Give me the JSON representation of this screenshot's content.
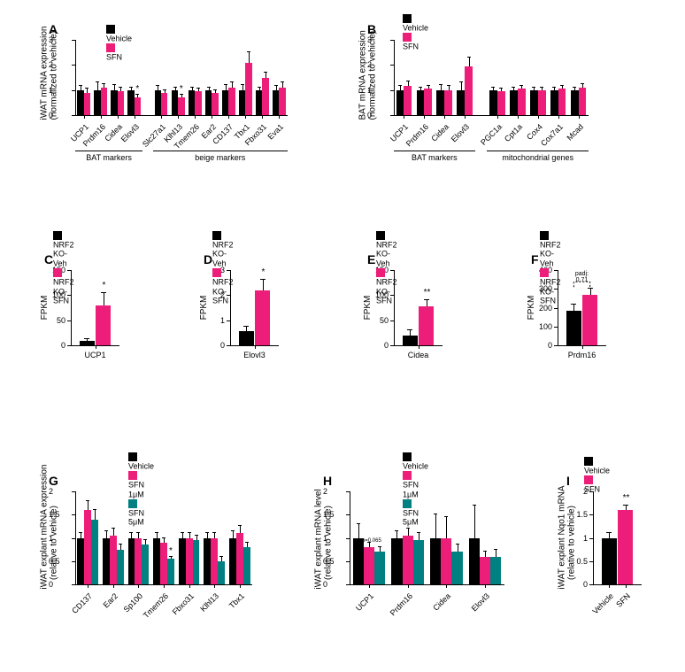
{
  "colors": {
    "vehicle": "#000000",
    "sfn": "#ed1e79",
    "sfn5": "#008080",
    "axis": "#000000",
    "bg": "#ffffff"
  },
  "panelA": {
    "label": "A",
    "y_label": "iWAT mRNA expression\n(normalized to vehicle)",
    "ylim": [
      0,
      3
    ],
    "yticks": [
      0,
      1,
      2,
      3
    ],
    "legend": [
      {
        "label": "Vehicle",
        "color": "#000000"
      },
      {
        "label": "SFN",
        "color": "#ed1e79"
      }
    ],
    "cats": [
      "UCP1",
      "Prdm16",
      "Cidea",
      "Elovl3",
      "Slc27a1",
      "Klhl13",
      "Tmem26",
      "Ear2",
      "CD137",
      "Tbx1",
      "Fbxo31",
      "Eva1"
    ],
    "groups": [
      {
        "label": "BAT markers",
        "start": 0,
        "end": 3
      },
      {
        "label": "beige markers",
        "start": 4,
        "end": 11
      }
    ],
    "vehicle": [
      1.0,
      1.0,
      1.0,
      1.0,
      1.0,
      1.0,
      1.0,
      1.0,
      1.0,
      1.0,
      1.0,
      1.0
    ],
    "vehicle_err": [
      0.15,
      0.3,
      0.2,
      0.1,
      0.15,
      0.1,
      0.1,
      0.1,
      0.2,
      0.2,
      0.1,
      0.15
    ],
    "sfn": [
      0.9,
      1.1,
      0.95,
      0.7,
      0.9,
      0.7,
      0.95,
      0.9,
      1.1,
      2.1,
      1.5,
      1.1
    ],
    "sfn_err": [
      0.15,
      0.15,
      0.15,
      0.1,
      0.1,
      0.1,
      0.1,
      0.1,
      0.2,
      0.4,
      0.2,
      0.2
    ],
    "sig": {
      "3": "*",
      "5": "*"
    }
  },
  "panelB": {
    "label": "B",
    "y_label": "BAT mRNA expression\n(normalized to vehicle)",
    "ylim": [
      0,
      3
    ],
    "yticks": [
      0,
      1,
      2,
      3
    ],
    "legend": [
      {
        "label": "Vehicle",
        "color": "#000000"
      },
      {
        "label": "SFN",
        "color": "#ed1e79"
      }
    ],
    "cats": [
      "UCP1",
      "Prdm16",
      "Cidea",
      "Elovl3",
      "PGC1a",
      "Cpt1a",
      "Cox4",
      "Cox7a1",
      "Mcad"
    ],
    "groups": [
      {
        "label": "BAT markers",
        "start": 0,
        "end": 3
      },
      {
        "label": "mitochondrial genes",
        "start": 4,
        "end": 8
      }
    ],
    "vehicle": [
      1.0,
      1.0,
      1.0,
      1.0,
      1.0,
      1.0,
      1.0,
      1.0,
      1.0
    ],
    "vehicle_err": [
      0.15,
      0.1,
      0.2,
      0.3,
      0.1,
      0.1,
      0.1,
      0.1,
      0.1
    ],
    "sfn": [
      1.15,
      1.05,
      1.0,
      1.95,
      0.95,
      1.05,
      1.0,
      1.05,
      1.1
    ],
    "sfn_err": [
      0.2,
      0.1,
      0.15,
      0.35,
      0.1,
      0.1,
      0.1,
      0.1,
      0.15
    ],
    "sig": {}
  },
  "panelC": {
    "label": "C",
    "y_label": "FPKM",
    "ylim": [
      0,
      150
    ],
    "yticks": [
      0,
      50,
      100,
      150
    ],
    "legend": [
      {
        "label": "NRF2 KO-Veh",
        "color": "#000000"
      },
      {
        "label": "NRF2 KO-SFN",
        "color": "#ed1e79"
      }
    ],
    "cat": "UCP1",
    "v": [
      8,
      80
    ],
    "e": [
      5,
      25
    ],
    "sig": "*"
  },
  "panelD": {
    "label": "D",
    "y_label": "FPKM",
    "ylim": [
      0,
      3
    ],
    "yticks": [
      0,
      1,
      2,
      3
    ],
    "legend": [
      {
        "label": "NRF2 KO-Veh",
        "color": "#000000"
      },
      {
        "label": "NRF2 KO-SFN",
        "color": "#ed1e79"
      }
    ],
    "cat": "Elovl3",
    "v": [
      0.55,
      2.2
    ],
    "e": [
      0.2,
      0.4
    ],
    "sig": "*"
  },
  "panelE": {
    "label": "E",
    "y_label": "FPKM",
    "ylim": [
      0,
      150
    ],
    "yticks": [
      0,
      50,
      100,
      150
    ],
    "legend": [
      {
        "label": "NRF2 KO-Veh",
        "color": "#000000"
      },
      {
        "label": "NRF2 KO-SFN",
        "color": "#ed1e79"
      }
    ],
    "cat": "Cidea",
    "v": [
      20,
      78
    ],
    "e": [
      10,
      12
    ],
    "sig": "**"
  },
  "panelF": {
    "label": "F",
    "y_label": "FPKM",
    "ylim": [
      0,
      400
    ],
    "yticks": [
      0,
      100,
      200,
      300,
      400
    ],
    "legend": [
      {
        "label": "NRF2 KO-Veh",
        "color": "#000000"
      },
      {
        "label": "NRF2 KO-SFN",
        "color": "#ed1e79"
      }
    ],
    "cat": "Prdm16",
    "v": [
      185,
      270
    ],
    "e": [
      30,
      30
    ],
    "sig": "padj: 0.71"
  },
  "panelG": {
    "label": "G",
    "y_label": "iWAT explant mRNA expression\n(relative to vehicle)",
    "ylim": [
      0,
      2
    ],
    "yticks": [
      0.0,
      0.5,
      1.0,
      1.5,
      2.0
    ],
    "legend": [
      {
        "label": "Vehicle",
        "color": "#000000"
      },
      {
        "label": "SFN 1μM",
        "color": "#ed1e79"
      },
      {
        "label": "SFN 5μM",
        "color": "#008080"
      }
    ],
    "cats": [
      "CD137",
      "Ear2",
      "Sp100",
      "Tmem26",
      "Fbxo31",
      "Klhl13",
      "Tbx1"
    ],
    "vehicle": [
      1.0,
      1.0,
      1.0,
      1.0,
      1.0,
      1.0,
      1.0
    ],
    "vehicle_err": [
      0.1,
      0.15,
      0.1,
      0.1,
      0.1,
      0.1,
      0.15
    ],
    "s1": [
      1.6,
      1.05,
      1.0,
      0.9,
      1.0,
      1.0,
      1.1
    ],
    "s1_err": [
      0.2,
      0.15,
      0.1,
      0.1,
      0.1,
      0.1,
      0.15
    ],
    "s5": [
      1.4,
      0.75,
      0.85,
      0.55,
      0.95,
      0.5,
      0.8
    ],
    "s5_err": [
      0.2,
      0.1,
      0.1,
      0.05,
      0.1,
      0.1,
      0.1
    ],
    "sig": {
      "3": "*"
    }
  },
  "panelH": {
    "label": "H",
    "y_label": "iWAT explant mRNA level\n(relative to vehicle)",
    "ylim": [
      0,
      2
    ],
    "yticks": [
      0.0,
      0.5,
      1.0,
      1.5,
      2.0
    ],
    "legend": [
      {
        "label": "Vehicle",
        "color": "#000000"
      },
      {
        "label": "SFN 1μM",
        "color": "#ed1e79"
      },
      {
        "label": "SFN 5μM",
        "color": "#008080"
      }
    ],
    "cats": [
      "UCP1",
      "Prdm16",
      "Cidea",
      "Elovl3"
    ],
    "vehicle": [
      1.0,
      1.0,
      1.0,
      1.0
    ],
    "vehicle_err": [
      0.3,
      0.15,
      0.5,
      0.7
    ],
    "s1": [
      0.8,
      1.05,
      1.0,
      0.6
    ],
    "s1_err": [
      0.1,
      0.15,
      0.45,
      0.1
    ],
    "s5": [
      0.7,
      0.95,
      0.7,
      0.6
    ],
    "s5_err": [
      0.1,
      0.15,
      0.15,
      0.15
    ],
    "note": {
      "0": "p=0.065"
    }
  },
  "panelI": {
    "label": "I",
    "y_label": "iWAT explant Nqo1 mRNA\n(relative to vehicle)",
    "ylim": [
      0,
      2
    ],
    "yticks": [
      0.0,
      0.5,
      1.0,
      1.5,
      2.0
    ],
    "legend": [
      {
        "label": "Vehicle",
        "color": "#000000"
      },
      {
        "label": "SFN",
        "color": "#ed1e79"
      }
    ],
    "cats": [
      "Vehicle",
      "SFN"
    ],
    "v": [
      1.0,
      1.6
    ],
    "e": [
      0.1,
      0.1
    ],
    "sig": "**"
  }
}
